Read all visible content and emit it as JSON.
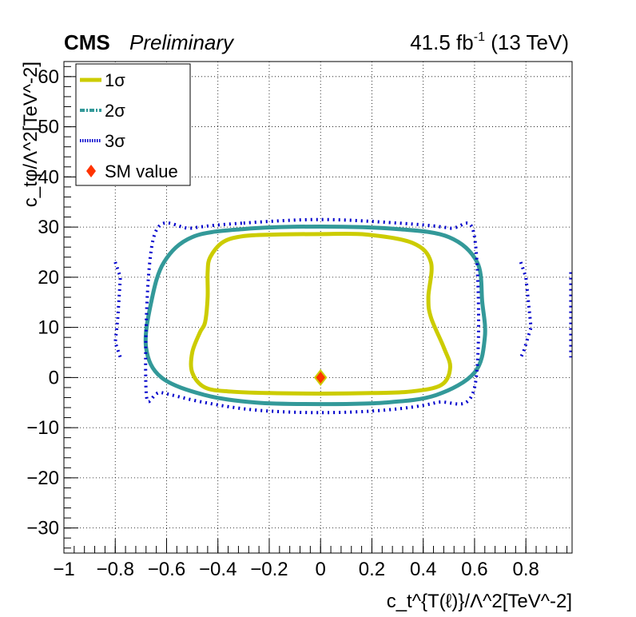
{
  "header": {
    "experiment": "CMS",
    "status": "Preliminary",
    "lumi_value": "41.5 fb",
    "lumi_exp": "-1",
    "energy": "(13 TeV)"
  },
  "chart_data": {
    "type": "contour",
    "xlabel": "c_t^{T(ℓ)}/Λ^2[TeV^-2]",
    "ylabel": "c_tφ/Λ^2[TeV^-2]",
    "xlim": [
      -1,
      0.98
    ],
    "ylim": [
      -35,
      63
    ],
    "xticks": [
      "−1",
      "−0.8",
      "−0.6",
      "−0.4",
      "−0.2",
      "0",
      "0.2",
      "0.4",
      "0.6",
      "0.8"
    ],
    "xtick_values": [
      -1,
      -0.8,
      -0.6,
      -0.4,
      -0.2,
      0,
      0.2,
      0.4,
      0.6,
      0.8
    ],
    "yticks": [
      "−30",
      "−20",
      "−10",
      "0",
      "10",
      "20",
      "30",
      "40",
      "50",
      "60"
    ],
    "ytick_values": [
      -30,
      -20,
      -10,
      0,
      10,
      20,
      30,
      40,
      50,
      60
    ],
    "grid": true,
    "legend_position": "top-left",
    "legend": [
      {
        "label": "1σ",
        "color": "#cccc00",
        "style": "solid"
      },
      {
        "label": "2σ",
        "color": "#339999",
        "style": "dashdot"
      },
      {
        "label": "3σ",
        "color": "#0000cc",
        "style": "dotted"
      },
      {
        "label": "SM value",
        "color": "#ff3300",
        "style": "diamond"
      }
    ],
    "contours": [
      {
        "name": "1σ",
        "color": "#cccc00",
        "points": [
          [
            -0.18,
            28.5
          ],
          [
            0,
            28.6
          ],
          [
            0.18,
            28.5
          ],
          [
            0.36,
            26.8
          ],
          [
            0.43,
            23
          ],
          [
            0.42,
            16
          ],
          [
            0.43,
            12
          ],
          [
            0.48,
            6
          ],
          [
            0.505,
            2
          ],
          [
            0.47,
            -1.5
          ],
          [
            0.35,
            -2.8
          ],
          [
            0.2,
            -3.1
          ],
          [
            0,
            -3.2
          ],
          [
            -0.2,
            -3.1
          ],
          [
            -0.35,
            -2.8
          ],
          [
            -0.45,
            -2
          ],
          [
            -0.5,
            1
          ],
          [
            -0.5,
            5
          ],
          [
            -0.47,
            9
          ],
          [
            -0.45,
            11
          ],
          [
            -0.44,
            16
          ],
          [
            -0.44,
            21
          ],
          [
            -0.43,
            24
          ],
          [
            -0.38,
            27
          ],
          [
            -0.3,
            28.2
          ]
        ]
      },
      {
        "name": "2σ",
        "color": "#339999",
        "points": [
          [
            -0.3,
            29.6
          ],
          [
            0,
            30.1
          ],
          [
            0.3,
            29.6
          ],
          [
            0.5,
            28
          ],
          [
            0.61,
            23
          ],
          [
            0.63,
            15
          ],
          [
            0.64,
            8
          ],
          [
            0.6,
            1
          ],
          [
            0.45,
            -3.5
          ],
          [
            0.25,
            -5
          ],
          [
            0,
            -5.3
          ],
          [
            -0.25,
            -5
          ],
          [
            -0.45,
            -3.5
          ],
          [
            -0.62,
            0
          ],
          [
            -0.68,
            6
          ],
          [
            -0.66,
            15
          ],
          [
            -0.61,
            23
          ],
          [
            -0.5,
            28
          ]
        ]
      },
      {
        "name": "3σ",
        "color": "#0000cc",
        "points": [
          [
            -0.3,
            30.8
          ],
          [
            0,
            31.5
          ],
          [
            0.3,
            30.8
          ],
          [
            0.5,
            29.8
          ],
          [
            0.6,
            28
          ],
          [
            0.6,
            -2
          ],
          [
            0.45,
            -5
          ],
          [
            0.25,
            -6.5
          ],
          [
            0,
            -7
          ],
          [
            -0.25,
            -6.5
          ],
          [
            -0.45,
            -5
          ],
          [
            -0.62,
            -3
          ],
          [
            -0.68,
            -2.5
          ],
          [
            -0.65,
            28
          ],
          [
            -0.5,
            29.8
          ]
        ]
      },
      {
        "name": "3σ-left",
        "color": "#0000cc",
        "points": [
          [
            -0.8,
            23
          ],
          [
            -0.78,
            20
          ],
          [
            -0.79,
            12
          ],
          [
            -0.8,
            7
          ],
          [
            -0.78,
            4
          ]
        ]
      },
      {
        "name": "3σ-right",
        "color": "#0000cc",
        "points": [
          [
            0.78,
            23
          ],
          [
            0.8,
            20
          ],
          [
            0.82,
            10
          ],
          [
            0.79,
            5
          ],
          [
            0.78,
            4
          ]
        ]
      },
      {
        "name": "3σ-edge",
        "color": "#0000cc",
        "points": [
          [
            0.975,
            21
          ],
          [
            0.975,
            4
          ]
        ]
      }
    ],
    "sm_point": {
      "x": 0,
      "y": 0
    }
  }
}
